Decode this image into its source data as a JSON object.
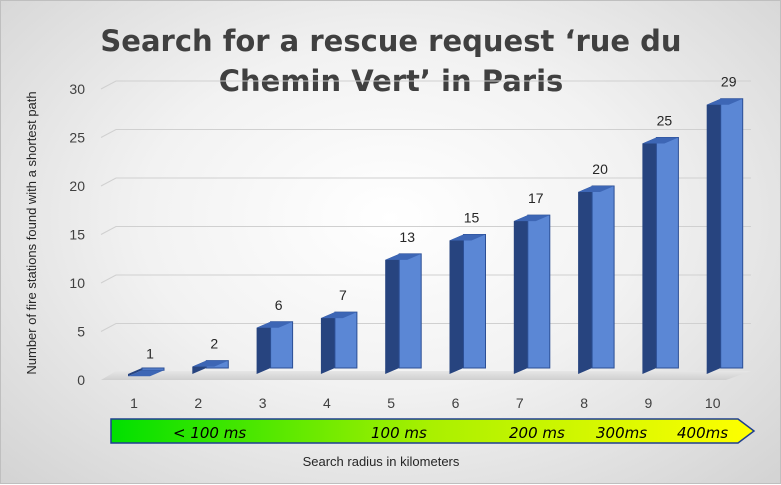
{
  "chart_data": {
    "type": "bar",
    "title_lines": [
      "Search for a rescue request ‘rue du",
      "Chemin Vert’ in Paris"
    ],
    "xlabel": "Search radius in kilometers",
    "ylabel": "Number of fire stations found with a shortest path",
    "categories": [
      "1",
      "2",
      "3",
      "4",
      "5",
      "6",
      "7",
      "8",
      "9",
      "10"
    ],
    "values": [
      1,
      2,
      6,
      7,
      13,
      15,
      17,
      20,
      25,
      29
    ],
    "ylim": [
      0,
      30
    ],
    "yticks": [
      "0",
      "5",
      "10",
      "15",
      "20",
      "25",
      "30"
    ],
    "grid": true,
    "legend": "none",
    "bar_color": "#5b87d5",
    "timing_arrow": {
      "labels": [
        "< 100 ms",
        "100 ms",
        "200 ms",
        "300ms",
        "400ms"
      ],
      "gradient": [
        "#00e000",
        "#aaf000",
        "#ffff00"
      ]
    }
  }
}
